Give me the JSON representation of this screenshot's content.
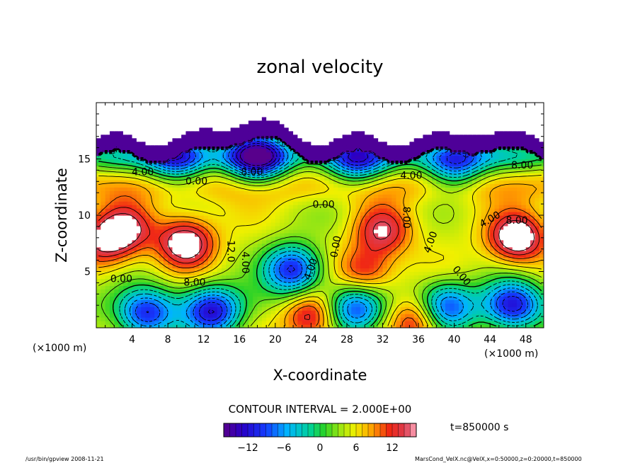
{
  "chart_data": {
    "type": "heatmap",
    "title": "zonal velocity",
    "xlabel": "X-coordinate",
    "ylabel": "Z-coordinate",
    "x_unit_label": "(×1000 m)",
    "x_unit_label_right": "(×1000 m)",
    "xlim": [
      0,
      50
    ],
    "ylim": [
      0,
      20
    ],
    "x_ticks": [
      4,
      8,
      12,
      16,
      20,
      24,
      28,
      32,
      36,
      40,
      44,
      48
    ],
    "x_tick_labels": [
      "4",
      "8",
      "12",
      "16",
      "20",
      "24",
      "28",
      "32",
      "36",
      "40",
      "44",
      "48"
    ],
    "y_ticks": [
      5,
      10,
      15
    ],
    "y_tick_labels": [
      "5",
      "10",
      "15"
    ],
    "contour_interval_text": "CONTOUR INTERVAL = 2.000E+00",
    "time_text": "t=850000 s",
    "colorbar": {
      "min": -16,
      "max": 16,
      "ticks": [
        -12,
        -6,
        0,
        6,
        12
      ],
      "tick_labels": [
        "−12",
        "−6",
        "0",
        "6",
        "12"
      ]
    },
    "contour_labels": [
      {
        "x": 5.2,
        "z": 13.8,
        "text": "4.00"
      },
      {
        "x": 11.2,
        "z": 13.0,
        "text": "0.00"
      },
      {
        "x": 17.4,
        "z": 13.8,
        "text": "8.00"
      },
      {
        "x": 25.4,
        "z": 10.9,
        "text": "0.00"
      },
      {
        "x": 35.2,
        "z": 13.5,
        "text": "4.00"
      },
      {
        "x": 47.6,
        "z": 14.4,
        "text": "8.00"
      },
      {
        "x": 34.6,
        "z": 9.8,
        "text": "8.00",
        "rot": 90
      },
      {
        "x": 15.0,
        "z": 6.8,
        "text": "12.0",
        "rot": 90
      },
      {
        "x": 16.6,
        "z": 5.8,
        "text": "4.00",
        "rot": 90
      },
      {
        "x": 26.8,
        "z": 7.2,
        "text": "0.00",
        "rot": -80
      },
      {
        "x": 24.0,
        "z": 5.2,
        "text": "4.00",
        "rot": -70
      },
      {
        "x": 37.4,
        "z": 7.6,
        "text": "4.00",
        "rot": -70
      },
      {
        "x": 44.0,
        "z": 9.6,
        "text": "4.00",
        "rot": -30
      },
      {
        "x": 47.0,
        "z": 9.5,
        "text": "8.00"
      },
      {
        "x": 40.8,
        "z": 4.6,
        "text": "0.00",
        "rot": 50
      },
      {
        "x": 2.8,
        "z": 4.3,
        "text": "0.00"
      },
      {
        "x": 11.0,
        "z": 4.0,
        "text": "8.00"
      }
    ],
    "features": [
      {
        "x": 10,
        "z": 7.6,
        "value": 16
      },
      {
        "x": 3.2,
        "z": 8.8,
        "value": 13
      },
      {
        "x": 0.8,
        "z": 7.5,
        "value": 12
      },
      {
        "x": 32,
        "z": 8.6,
        "value": 13
      },
      {
        "x": 30,
        "z": 5.0,
        "value": 12
      },
      {
        "x": 47,
        "z": 8.0,
        "value": 17
      },
      {
        "x": 24,
        "z": 1.2,
        "value": 15
      },
      {
        "x": 36,
        "z": 0.8,
        "value": 14
      },
      {
        "x": 22,
        "z": 5.2,
        "value": -12
      },
      {
        "x": 5.5,
        "z": 1.2,
        "value": -10
      },
      {
        "x": 13,
        "z": 1.4,
        "value": -11
      },
      {
        "x": 29,
        "z": 1.6,
        "value": -9
      },
      {
        "x": 46.5,
        "z": 2.0,
        "value": -11
      },
      {
        "x": 39,
        "z": 1.8,
        "value": -9
      },
      {
        "x": 18,
        "z": 15.2,
        "value": -13
      },
      {
        "x": 9,
        "z": 15.2,
        "value": -9
      },
      {
        "x": 29,
        "z": 15.0,
        "value": -8
      },
      {
        "x": 40,
        "z": 14.6,
        "value": -8
      },
      {
        "x": 16,
        "z": 12.8,
        "value": 4
      },
      {
        "x": 27,
        "z": 10.0,
        "value": 3
      }
    ],
    "white_regions": [
      "top (blank, no data)",
      "extremes above/below colour scale"
    ],
    "grid": false
  },
  "footer": {
    "left_text": "/usr/bin/gpview   2008-11-21",
    "right_text": "MarsCond_VelX.nc@VelX,x=0:50000,z=0:20000,t=850000"
  }
}
